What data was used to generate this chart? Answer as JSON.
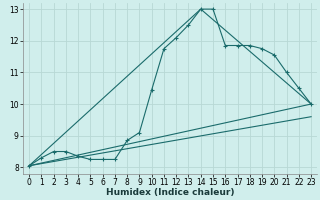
{
  "xlabel": "Humidex (Indice chaleur)",
  "ylabel": "",
  "bg_color": "#d0eeec",
  "grid_color": "#b8d8d5",
  "line_color": "#1a6b6b",
  "xlim": [
    -0.5,
    23.5
  ],
  "ylim": [
    7.8,
    13.2
  ],
  "yticks": [
    8,
    9,
    10,
    11,
    12,
    13
  ],
  "xticks": [
    0,
    1,
    2,
    3,
    4,
    5,
    6,
    7,
    8,
    9,
    10,
    11,
    12,
    13,
    14,
    15,
    16,
    17,
    18,
    19,
    20,
    21,
    22,
    23
  ],
  "series1_x": [
    0,
    1,
    2,
    3,
    4,
    5,
    6,
    7,
    8,
    9,
    10,
    11,
    12,
    13,
    14,
    15,
    16,
    17,
    18,
    19,
    20,
    21,
    22,
    23
  ],
  "series1_y": [
    8.05,
    8.3,
    8.5,
    8.5,
    8.35,
    8.25,
    8.25,
    8.25,
    8.85,
    9.1,
    10.45,
    11.75,
    12.1,
    12.5,
    13.0,
    13.0,
    11.85,
    11.85,
    11.85,
    11.75,
    11.55,
    11.0,
    10.5,
    10.0
  ],
  "series2_x": [
    0,
    23
  ],
  "series2_y": [
    8.05,
    10.0
  ],
  "series3_x": [
    0,
    14,
    23
  ],
  "series3_y": [
    8.05,
    13.0,
    10.0
  ],
  "series4_x": [
    0,
    23
  ],
  "series4_y": [
    8.05,
    9.6
  ],
  "tick_fontsize": 5.5,
  "label_fontsize": 6.5
}
